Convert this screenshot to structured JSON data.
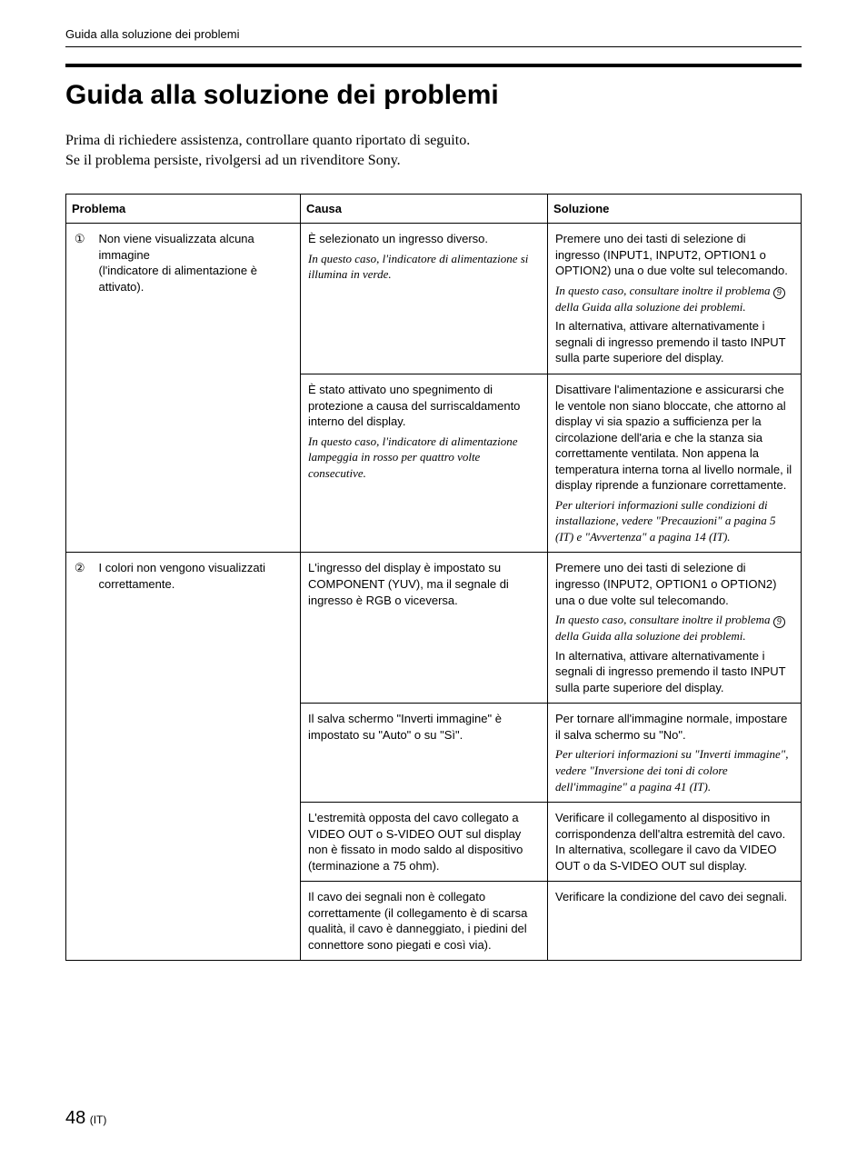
{
  "running_header": "Guida alla soluzione dei problemi",
  "title": "Guida alla soluzione dei problemi",
  "intro_line1": "Prima di richiedere assistenza, controllare quanto riportato di seguito.",
  "intro_line2": "Se il problema persiste, rivolgersi ad un rivenditore Sony.",
  "headers": {
    "problema": "Problema",
    "causa": "Causa",
    "soluzione": "Soluzione"
  },
  "ref9": "9",
  "rows": {
    "r1": {
      "num_glyph": "①",
      "problem": "Non viene visualizzata alcuna immagine\n(l'indicatore di alimentazione è attivato).",
      "sub1": {
        "cause_p1": "È selezionato un ingresso diverso.",
        "cause_i1": "In questo caso, l'indicatore di alimentazione si illumina in verde.",
        "sol_p1": "Premere uno dei tasti di selezione di ingresso (INPUT1, INPUT2, OPTION1 o OPTION2) una o due volte sul telecomando.",
        "sol_i1a": "In questo caso, consultare inoltre il problema ",
        "sol_i1b": " della Guida alla soluzione dei problemi.",
        "sol_p2": "In alternativa, attivare alternativamente i segnali di ingresso premendo il tasto INPUT sulla parte superiore del display."
      },
      "sub2": {
        "cause_p1": "È stato attivato uno spegnimento di protezione a causa del surriscaldamento interno del display.",
        "cause_i1": "In questo caso, l'indicatore di alimentazione lampeggia in rosso per quattro volte consecutive.",
        "sol_p1": "Disattivare l'alimentazione e assicurarsi che le ventole non siano bloccate, che attorno al display vi sia spazio a sufficienza per la circolazione dell'aria e che la stanza sia correttamente ventilata. Non appena la temperatura interna torna al livello normale, il display riprende a funzionare correttamente.",
        "sol_i1": "Per ulteriori informazioni sulle condizioni di installazione, vedere \"Precauzioni\" a pagina 5 (IT) e \"Avvertenza\" a pagina 14 (IT)."
      }
    },
    "r2": {
      "num_glyph": "②",
      "problem": "I colori non vengono visualizzati correttamente.",
      "sub1": {
        "cause_p1": "L'ingresso del display è impostato su COMPONENT (YUV), ma il segnale di ingresso è RGB o viceversa.",
        "sol_p1": "Premere uno dei tasti di selezione di ingresso (INPUT2, OPTION1 o OPTION2) una o due volte sul telecomando.",
        "sol_i1a": "In questo caso, consultare inoltre il problema ",
        "sol_i1b": " della Guida alla soluzione dei problemi.",
        "sol_p2": "In alternativa, attivare alternativamente i segnali di ingresso premendo il tasto INPUT sulla parte superiore del display."
      },
      "sub2": {
        "cause_p1": "Il salva schermo \"Inverti immagine\" è impostato su \"Auto\" o su \"Sì\".",
        "sol_p1": "Per tornare all'immagine normale, impostare il salva schermo su \"No\".",
        "sol_i1": "Per ulteriori informazioni su \"Inverti immagine\", vedere \"Inversione dei toni di colore dell'immagine\" a pagina 41 (IT)."
      },
      "sub3": {
        "cause_p1": "L'estremità opposta del cavo collegato a VIDEO OUT o S-VIDEO OUT sul display non è fissato in modo saldo al dispositivo (terminazione a 75 ohm).",
        "sol_p1": "Verificare il collegamento al dispositivo in corrispondenza dell'altra estremità del cavo.\nIn alternativa, scollegare il cavo da VIDEO OUT o da S-VIDEO OUT sul display."
      },
      "sub4": {
        "cause_p1": "Il cavo dei segnali non è collegato correttamente (il collegamento è di scarsa qualità, il cavo è danneggiato, i piedini del connettore sono piegati e così via).",
        "sol_p1": "Verificare la condizione del cavo dei segnali."
      }
    }
  },
  "page_number_big": "48",
  "page_number_small": "(IT)"
}
